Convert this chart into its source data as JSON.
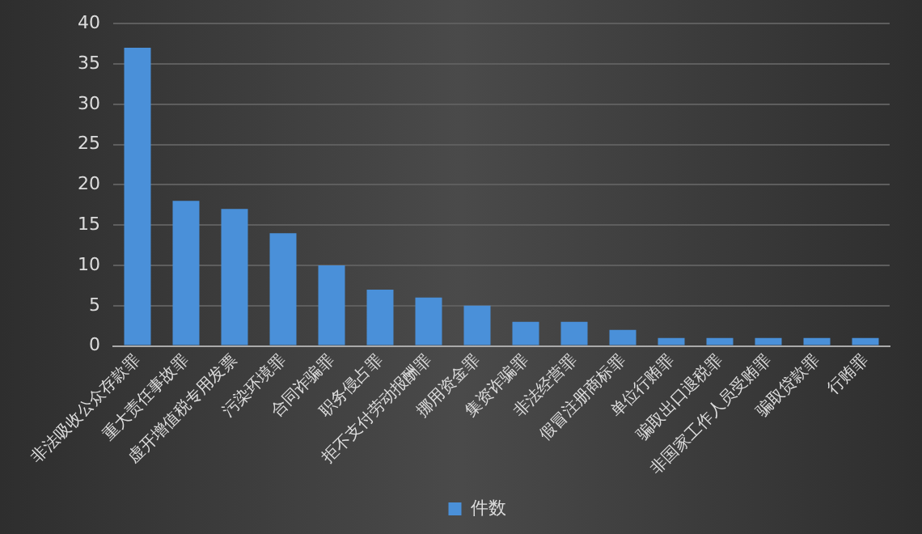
{
  "chart_data": {
    "type": "bar",
    "categories": [
      "非法吸收公众存款罪",
      "重大责任事故罪",
      "虚开增值税专用发票",
      "污染环境罪",
      "合同诈骗罪",
      "职务侵占罪",
      "拒不支付劳动报酬罪",
      "挪用资金罪",
      "集资诈骗罪",
      "非法经营罪",
      "假冒注册商标罪",
      "单位行贿罪",
      "骗取出口退税罪",
      "非国家工作人员受贿罪",
      "骗取贷款罪",
      "行贿罪"
    ],
    "series": [
      {
        "name": "件数",
        "color": "#4a90d9",
        "values": [
          37,
          18,
          17,
          14,
          10,
          7,
          6,
          5,
          3,
          3,
          2,
          1,
          1,
          1,
          1,
          1
        ]
      }
    ],
    "ylim": [
      0,
      40
    ],
    "yticks": [
      0,
      5,
      10,
      15,
      20,
      25,
      30,
      35,
      40
    ],
    "grid": "y",
    "legend": "bottom"
  }
}
